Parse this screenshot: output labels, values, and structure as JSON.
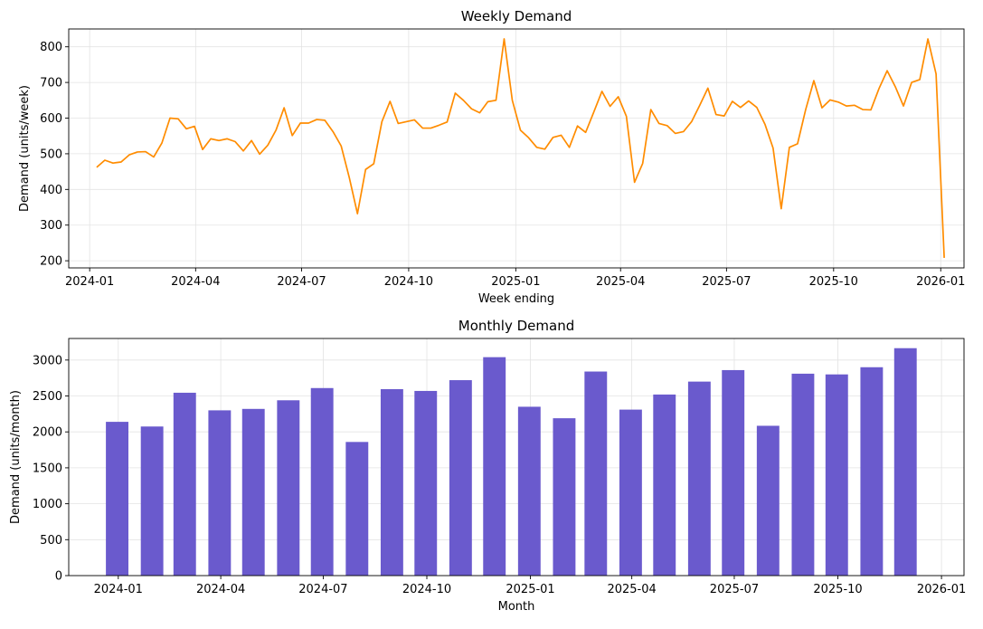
{
  "chart_data": [
    {
      "type": "line",
      "title": "Weekly Demand",
      "xlabel": "Week ending",
      "ylabel": "Demand (units/week)",
      "grid": true,
      "color": "#ff8c00",
      "xlim": [
        "2023-12-14",
        "2026-01-21"
      ],
      "ylim": [
        180,
        850
      ],
      "x_ticks": [
        "2024-01",
        "2024-04",
        "2024-07",
        "2024-10",
        "2025-01",
        "2025-04",
        "2025-07",
        "2025-10",
        "2026-01"
      ],
      "y_ticks": [
        200,
        300,
        400,
        500,
        600,
        700,
        800
      ],
      "x": [
        "2024-01-07",
        "2024-01-14",
        "2024-01-21",
        "2024-01-28",
        "2024-02-04",
        "2024-02-11",
        "2024-02-18",
        "2024-02-25",
        "2024-03-03",
        "2024-03-10",
        "2024-03-17",
        "2024-03-24",
        "2024-03-31",
        "2024-04-07",
        "2024-04-14",
        "2024-04-21",
        "2024-04-28",
        "2024-05-05",
        "2024-05-12",
        "2024-05-19",
        "2024-05-26",
        "2024-06-02",
        "2024-06-09",
        "2024-06-16",
        "2024-06-23",
        "2024-06-30",
        "2024-07-07",
        "2024-07-14",
        "2024-07-21",
        "2024-07-28",
        "2024-08-04",
        "2024-08-11",
        "2024-08-18",
        "2024-08-25",
        "2024-09-01",
        "2024-09-08",
        "2024-09-15",
        "2024-09-22",
        "2024-09-29",
        "2024-10-06",
        "2024-10-13",
        "2024-10-20",
        "2024-10-27",
        "2024-11-03",
        "2024-11-10",
        "2024-11-17",
        "2024-11-24",
        "2024-12-01",
        "2024-12-08",
        "2024-12-15",
        "2024-12-22",
        "2024-12-29",
        "2025-01-05",
        "2025-01-12",
        "2025-01-19",
        "2025-01-26",
        "2025-02-02",
        "2025-02-09",
        "2025-02-16",
        "2025-02-23",
        "2025-03-02",
        "2025-03-09",
        "2025-03-16",
        "2025-03-23",
        "2025-03-30",
        "2025-04-06",
        "2025-04-13",
        "2025-04-20",
        "2025-04-27",
        "2025-05-04",
        "2025-05-11",
        "2025-05-18",
        "2025-05-25",
        "2025-06-01",
        "2025-06-08",
        "2025-06-15",
        "2025-06-22",
        "2025-06-29",
        "2025-07-06",
        "2025-07-13",
        "2025-07-20",
        "2025-07-27",
        "2025-08-03",
        "2025-08-10",
        "2025-08-17",
        "2025-08-24",
        "2025-08-31",
        "2025-09-07",
        "2025-09-14",
        "2025-09-21",
        "2025-09-28",
        "2025-10-05",
        "2025-10-12",
        "2025-10-19",
        "2025-10-26",
        "2025-11-02",
        "2025-11-09",
        "2025-11-16",
        "2025-11-23",
        "2025-11-30",
        "2025-12-07",
        "2025-12-14",
        "2025-12-21",
        "2025-12-28",
        "2026-01-04"
      ],
      "y": [
        462,
        482,
        474,
        477,
        497,
        505,
        506,
        491,
        530,
        600,
        598,
        570,
        577,
        512,
        542,
        537,
        542,
        534,
        508,
        537,
        499,
        524,
        566,
        629,
        551,
        586,
        586,
        596,
        594,
        562,
        522,
        433,
        332,
        456,
        472,
        590,
        647,
        585,
        590,
        595,
        572,
        572,
        580,
        589,
        670,
        650,
        626,
        615,
        646,
        650,
        822,
        650,
        566,
        545,
        518,
        513,
        546,
        552,
        518,
        578,
        560,
        617,
        675,
        633,
        660,
        605,
        420,
        473,
        624,
        585,
        579,
        557,
        562,
        590,
        636,
        684,
        610,
        606,
        647,
        630,
        648,
        630,
        583,
        516,
        346,
        518,
        528,
        624,
        705,
        629,
        651,
        645,
        634,
        636,
        624,
        623,
        683,
        733,
        688,
        634,
        700,
        708,
        822,
        724,
        208
      ]
    },
    {
      "type": "bar",
      "title": "Monthly Demand",
      "xlabel": "Month",
      "ylabel": "Demand (units/month)",
      "grid": true,
      "color": "#6a5acd",
      "xlim": [
        "2023-11-18",
        "2026-01-21"
      ],
      "ylim": [
        0,
        3300
      ],
      "x_ticks": [
        "2024-01",
        "2024-04",
        "2024-07",
        "2024-10",
        "2025-01",
        "2025-04",
        "2025-07",
        "2025-10",
        "2026-01"
      ],
      "y_ticks": [
        0,
        500,
        1000,
        1500,
        2000,
        2500,
        3000
      ],
      "categories": [
        "2023-12-31",
        "2024-01-31",
        "2024-02-29",
        "2024-03-31",
        "2024-04-30",
        "2024-05-31",
        "2024-06-30",
        "2024-07-31",
        "2024-08-31",
        "2024-09-30",
        "2024-10-31",
        "2024-11-30",
        "2024-12-31",
        "2025-01-31",
        "2025-02-28",
        "2025-03-31",
        "2025-04-30",
        "2025-05-31",
        "2025-06-30",
        "2025-07-31",
        "2025-08-31",
        "2025-09-30",
        "2025-10-31",
        "2025-11-30"
      ],
      "values": [
        2140,
        2075,
        2545,
        2300,
        2320,
        2440,
        2610,
        1860,
        2595,
        2570,
        2720,
        3040,
        2350,
        2190,
        2840,
        2310,
        2520,
        2700,
        2860,
        2085,
        2810,
        2800,
        2900,
        3165
      ]
    }
  ]
}
